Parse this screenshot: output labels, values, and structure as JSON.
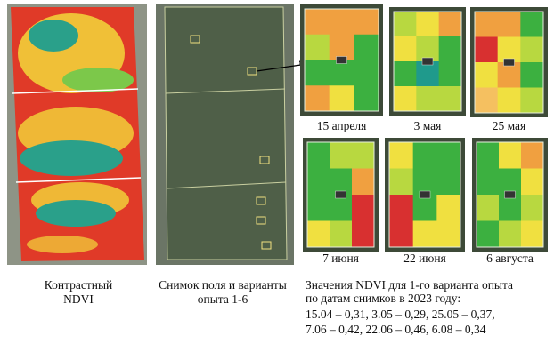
{
  "panels": [
    {
      "caption_lines": [
        "Контрастный",
        "NDVI"
      ]
    },
    {
      "caption_lines": [
        "Снимок поля и варианты",
        "опыта 1-6"
      ]
    }
  ],
  "thumbnails": [
    {
      "label": "15 апреля"
    },
    {
      "label": "3 мая"
    },
    {
      "label": "25 мая"
    },
    {
      "label": "7 июня"
    },
    {
      "label": "22 июня"
    },
    {
      "label": "6 августа"
    }
  ],
  "summary": {
    "lines": [
      "Значения NDVI для  1-го варианта опыта",
      "по датам снимков  в 2023 году:",
      "15.04 – 0,31,  3.05 – 0,29,  25.05 – 0,37,",
      "7.06 – 0,42,  22.06 – 0,46,  6.08 – 0,34"
    ]
  }
}
